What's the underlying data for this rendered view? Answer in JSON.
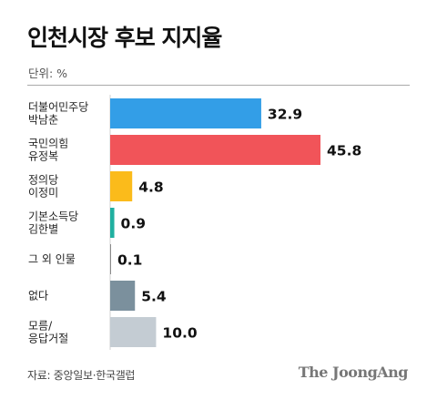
{
  "header": {
    "title": "인천시장 후보 지지율",
    "unit": "단위: %"
  },
  "footer": {
    "source": "자료: 중앙일보·한국갤럽",
    "brand": "The JoongAng"
  },
  "chart_data": {
    "type": "bar",
    "orientation": "horizontal",
    "title": "인천시장 후보 지지율",
    "unit": "%",
    "categories": [
      [
        "더불어민주당",
        "박남춘"
      ],
      [
        "국민의힘",
        "유정복"
      ],
      [
        "정의당",
        "이정미"
      ],
      [
        "기본소득당",
        "김한별"
      ],
      [
        "그 외 인물"
      ],
      [
        "없다"
      ],
      [
        "모름/",
        "응답거절"
      ]
    ],
    "values": [
      32.9,
      45.8,
      4.8,
      0.9,
      0.1,
      5.4,
      10.0
    ],
    "value_labels": [
      "32.9",
      "45.8",
      "4.8",
      "0.9",
      "0.1",
      "5.4",
      "10.0"
    ],
    "colors": [
      "#339ee7",
      "#f15459",
      "#fbbb1b",
      "#20b0a0",
      "#8a8a8a",
      "#7b909d",
      "#c4ccd3"
    ],
    "xlim": [
      0,
      45.8
    ],
    "grid": false,
    "legend": "none"
  }
}
